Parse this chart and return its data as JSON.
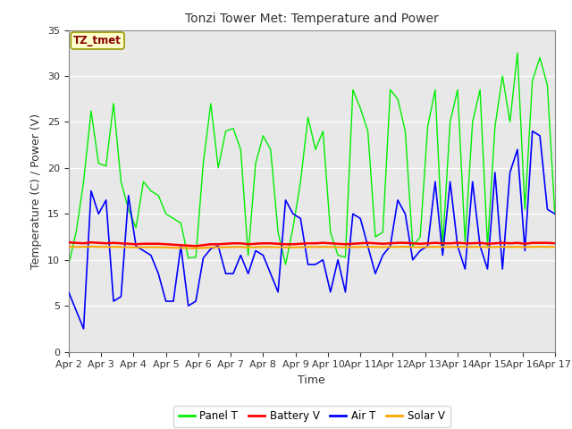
{
  "title": "Tonzi Tower Met: Temperature and Power",
  "xlabel": "Time",
  "ylabel": "Temperature (C) / Power (V)",
  "annotation_text": "TZ_tmet",
  "annotation_bg": "#ffffcc",
  "annotation_border": "#999900",
  "annotation_text_color": "#880000",
  "xlim_days": [
    0,
    15
  ],
  "ylim": [
    0,
    35
  ],
  "yticks": [
    0,
    5,
    10,
    15,
    20,
    25,
    30,
    35
  ],
  "bg_color": "#e8e8e8",
  "fig_bg": "#ffffff",
  "grid_color": "#ffffff",
  "panel_T_color": "#00ee00",
  "battery_V_color": "#ff0000",
  "air_T_color": "#0000ff",
  "solar_V_color": "#ffa500",
  "x_tick_labels": [
    "Apr 2",
    "Apr 3",
    "Apr 4",
    "Apr 5",
    "Apr 6",
    "Apr 7",
    "Apr 8",
    "Apr 9",
    "Apr 10",
    "Apr 11",
    "Apr 12",
    "Apr 13",
    "Apr 14",
    "Apr 15",
    "Apr 16",
    "Apr 17"
  ],
  "panel_T": [
    9.5,
    13.0,
    18.5,
    26.2,
    20.5,
    20.2,
    27.0,
    18.5,
    15.5,
    13.5,
    18.5,
    17.5,
    17.0,
    15.0,
    14.5,
    14.0,
    10.2,
    10.3,
    20.5,
    27.0,
    20.0,
    24.0,
    24.3,
    22.0,
    10.5,
    20.5,
    23.5,
    22.0,
    13.0,
    9.5,
    13.5,
    18.5,
    25.5,
    22.0,
    24.0,
    13.0,
    10.5,
    10.3,
    28.5,
    26.5,
    24.0,
    12.5,
    13.0,
    28.5,
    27.5,
    24.0,
    11.5,
    12.5,
    24.5,
    28.5,
    11.5,
    25.0,
    28.5,
    12.0,
    25.0,
    28.5,
    11.5,
    24.5,
    30.0,
    25.0,
    32.5,
    15.5,
    29.5,
    32.0,
    29.0,
    15.0
  ],
  "battery_V": [
    11.9,
    11.85,
    11.8,
    11.9,
    11.85,
    11.8,
    11.85,
    11.8,
    11.75,
    11.7,
    11.75,
    11.75,
    11.75,
    11.7,
    11.65,
    11.6,
    11.55,
    11.5,
    11.6,
    11.7,
    11.7,
    11.75,
    11.8,
    11.8,
    11.7,
    11.75,
    11.8,
    11.8,
    11.75,
    11.7,
    11.7,
    11.75,
    11.8,
    11.8,
    11.85,
    11.8,
    11.75,
    11.7,
    11.75,
    11.8,
    11.85,
    11.8,
    11.75,
    11.8,
    11.85,
    11.85,
    11.8,
    11.75,
    11.8,
    11.85,
    11.8,
    11.8,
    11.85,
    11.8,
    11.8,
    11.85,
    11.75,
    11.8,
    11.85,
    11.8,
    11.85,
    11.75,
    11.85,
    11.85,
    11.85,
    11.8
  ],
  "solar_V": [
    11.45,
    11.4,
    11.42,
    11.45,
    11.42,
    11.4,
    11.42,
    11.4,
    11.38,
    11.35,
    11.38,
    11.38,
    11.38,
    11.35,
    11.32,
    11.3,
    11.28,
    11.25,
    11.3,
    11.35,
    11.35,
    11.38,
    11.4,
    11.4,
    11.35,
    11.38,
    11.4,
    11.4,
    11.38,
    11.35,
    11.35,
    11.38,
    11.4,
    11.4,
    11.42,
    11.4,
    11.38,
    11.35,
    11.38,
    11.4,
    11.42,
    11.4,
    11.38,
    11.4,
    11.42,
    11.42,
    11.4,
    11.38,
    11.4,
    11.42,
    11.4,
    11.4,
    11.42,
    11.4,
    11.4,
    11.42,
    11.38,
    11.4,
    11.42,
    11.4,
    11.42,
    11.38,
    11.42,
    11.42,
    11.42,
    11.4
  ],
  "air_T": [
    6.5,
    4.5,
    2.5,
    17.5,
    15.0,
    16.5,
    5.5,
    6.0,
    17.0,
    11.5,
    11.0,
    10.5,
    8.5,
    5.5,
    5.5,
    11.5,
    5.0,
    5.5,
    10.2,
    11.2,
    11.5,
    8.5,
    8.5,
    10.5,
    8.5,
    11.0,
    10.5,
    8.5,
    6.5,
    16.5,
    15.0,
    14.5,
    9.5,
    9.5,
    10.0,
    6.5,
    10.0,
    6.5,
    15.0,
    14.5,
    11.5,
    8.5,
    10.5,
    11.5,
    16.5,
    15.0,
    10.0,
    11.0,
    11.5,
    18.5,
    10.5,
    18.5,
    11.5,
    9.0,
    18.5,
    11.5,
    9.0,
    19.5,
    9.0,
    19.5,
    22.0,
    11.0,
    24.0,
    23.5,
    15.5,
    15.0
  ]
}
